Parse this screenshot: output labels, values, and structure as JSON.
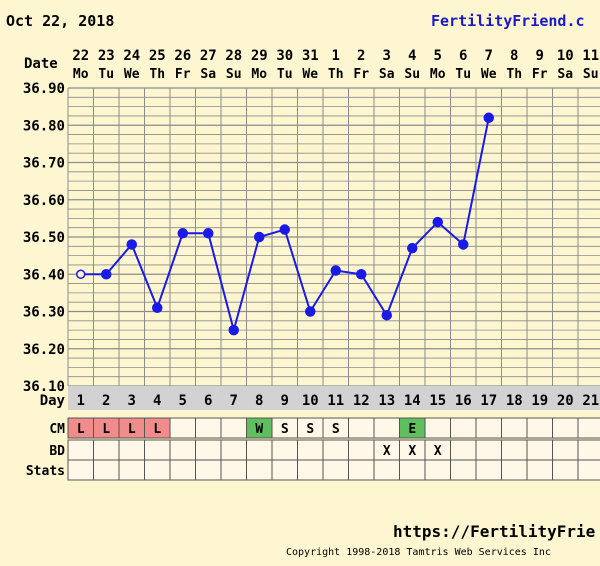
{
  "header": {
    "start_date": "Oct 22, 2018",
    "site_link": "FertilityFriend.c"
  },
  "footer": {
    "url": "https://FertilityFrie",
    "copyright": "Copyright 1998-2018 Tamtris Web Services Inc"
  },
  "row_labels": {
    "date": "Date",
    "day": "Day",
    "cm": "CM",
    "bd": "BD",
    "stats": "Stats"
  },
  "colors": {
    "background": "#fdf6d0",
    "grid": "#8c8c8c",
    "line": "#1a1ae6",
    "day_row": "#d2d2d2",
    "cm_L": "#f08c8c",
    "cm_W": "#5fbf5f",
    "cm_E": "#5fbf5f",
    "link": "#1a1ac8"
  },
  "chart_data": {
    "type": "line",
    "title": "",
    "xlabel": "Date",
    "ylabel": "",
    "ylim": [
      36.1,
      36.9
    ],
    "y_ticks": [
      "36.90",
      "36.80",
      "36.70",
      "36.60",
      "36.50",
      "36.40",
      "36.30",
      "36.20",
      "36.10"
    ],
    "grid": true,
    "dates": [
      "22",
      "23",
      "24",
      "25",
      "26",
      "27",
      "28",
      "29",
      "30",
      "31",
      "1",
      "2",
      "3",
      "4",
      "5",
      "6",
      "7",
      "8",
      "9",
      "10",
      "11"
    ],
    "weekdays": [
      "Mo",
      "Tu",
      "We",
      "Th",
      "Fr",
      "Sa",
      "Su",
      "Mo",
      "Tu",
      "We",
      "Th",
      "Fr",
      "Sa",
      "Su",
      "Mo",
      "Tu",
      "We",
      "Th",
      "Fr",
      "Sa",
      "Su"
    ],
    "cycle_days": [
      "1",
      "2",
      "3",
      "4",
      "5",
      "6",
      "7",
      "8",
      "9",
      "10",
      "11",
      "12",
      "13",
      "14",
      "15",
      "16",
      "17",
      "18",
      "19",
      "20",
      "21"
    ],
    "temps": [
      36.4,
      36.4,
      36.48,
      36.31,
      36.51,
      36.51,
      36.25,
      36.5,
      36.52,
      36.3,
      36.41,
      36.4,
      36.29,
      36.47,
      36.54,
      36.48,
      36.82
    ],
    "first_point_open": true,
    "cm": [
      "L",
      "L",
      "L",
      "L",
      "",
      "",
      "",
      "W",
      "S",
      "S",
      "S",
      "",
      "",
      "E",
      "",
      "",
      "",
      "",
      "",
      "",
      ""
    ],
    "bd": [
      "",
      "",
      "",
      "",
      "",
      "",
      "",
      "",
      "",
      "",
      "",
      "",
      "X",
      "X",
      "X",
      "",
      "",
      "",
      "",
      "",
      ""
    ],
    "stats": [
      "",
      "",
      "",
      "",
      "",
      "",
      "",
      "",
      "",
      "",
      "",
      "",
      "",
      "",
      "",
      "",
      "",
      "",
      "",
      "",
      ""
    ]
  }
}
